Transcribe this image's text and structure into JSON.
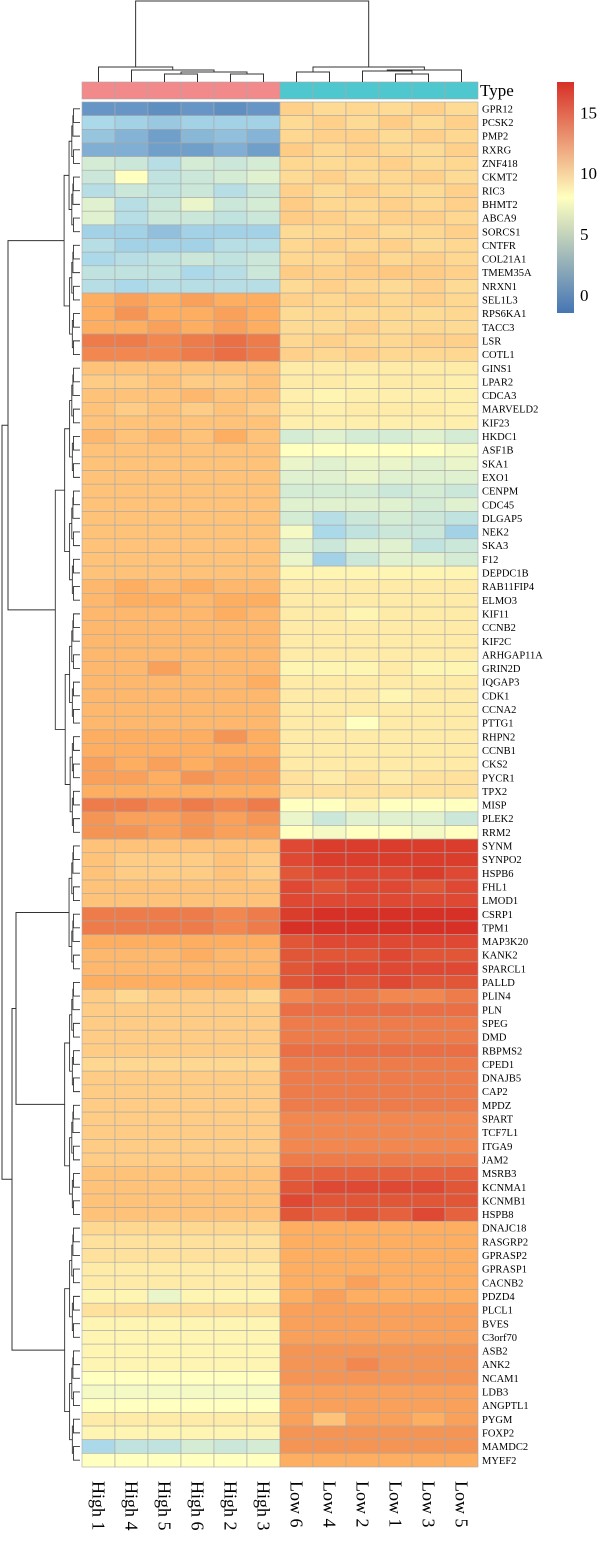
{
  "chart_data": {
    "type": "heatmap",
    "title": "",
    "annotation": {
      "label": "Type",
      "groups": [
        {
          "name": "High",
          "color": "#F28A8C"
        },
        {
          "name": "Low",
          "color": "#4EC8CE"
        }
      ]
    },
    "legend": {
      "ticks": [
        15,
        10,
        5,
        0
      ],
      "range": [
        -1.5,
        17.5
      ],
      "colors": [
        "#4575B4",
        "#FFFFBF",
        "#D73027"
      ],
      "placement": "top-right"
    },
    "columns": [
      "High 1",
      "High 4",
      "High 5",
      "High 6",
      "High 2",
      "High 3",
      "Low 6",
      "Low 4",
      "Low 2",
      "Low 1",
      "Low 3",
      "Low 5"
    ],
    "rows": [
      "GPR12",
      "PCSK2",
      "PMP2",
      "RXRG",
      "ZNF418",
      "CKMT2",
      "RIC3",
      "BHMT2",
      "ABCA9",
      "SORCS1",
      "CNTFR",
      "COL21A1",
      "TMEM35A",
      "NRXN1",
      "SEL1L3",
      "RPS6KA1",
      "TACC3",
      "LSR",
      "COTL1",
      "GINS1",
      "LPAR2",
      "CDCA3",
      "MARVELD2",
      "KIF23",
      "HKDC1",
      "ASF1B",
      "SKA1",
      "EXO1",
      "CENPM",
      "CDC45",
      "DLGAP5",
      "NEK2",
      "SKA3",
      "F12",
      "DEPDC1B",
      "RAB11FIP4",
      "ELMO3",
      "KIF11",
      "CCNB2",
      "KIF2C",
      "ARHGAP11A",
      "GRIN2D",
      "IQGAP3",
      "CDK1",
      "CCNA2",
      "PTTG1",
      "RHPN2",
      "CCNB1",
      "CKS2",
      "PYCR1",
      "TPX2",
      "MISP",
      "PLEK2",
      "RRM2",
      "SYNM",
      "SYNPO2",
      "HSPB6",
      "FHL1",
      "LMOD1",
      "CSRP1",
      "TPM1",
      "MAP3K20",
      "KANK2",
      "SPARCL1",
      "PALLD",
      "PLIN4",
      "PLN",
      "SPEG",
      "DMD",
      "RBPMS2",
      "CPED1",
      "DNAJB5",
      "CAP2",
      "MPDZ",
      "SPART",
      "TCF7L1",
      "ITGA9",
      "JAM2",
      "MSRB3",
      "KCNMA1",
      "KCNMB1",
      "HSPB8",
      "DNAJC18",
      "RASGRP2",
      "GPRASP2",
      "GPRASP1",
      "CACNB2",
      "PDZD4",
      "PLCL1",
      "BVES",
      "C3orf70",
      "ASB2",
      "ANK2",
      "NCAM1",
      "LDB3",
      "ANGPTL1",
      "PYGM",
      "FOXP2",
      "MAMDC2",
      "MYEF2"
    ],
    "values": [
      [
        0.5,
        0.5,
        0,
        0.5,
        0,
        0.5,
        10.8,
        10.3,
        10.5,
        10.3,
        10.8,
        10.3
      ],
      [
        4.5,
        4,
        3.5,
        4,
        4,
        4,
        10.3,
        10.8,
        10.3,
        11,
        10.3,
        10.8
      ],
      [
        3.3,
        2.2,
        1,
        2.5,
        3,
        2.3,
        10.5,
        10.8,
        10.8,
        10.3,
        10.8,
        10.5
      ],
      [
        2,
        2,
        1,
        1,
        2,
        1,
        11,
        10.5,
        10.8,
        10.5,
        10.3,
        10.8
      ],
      [
        6.5,
        6,
        5,
        6.5,
        6,
        6.5,
        10.5,
        10.3,
        10.5,
        10.8,
        10.3,
        10.5
      ],
      [
        6,
        8.5,
        5.5,
        6,
        6.5,
        7,
        10.3,
        10.8,
        10.3,
        10.5,
        10.8,
        10.3
      ],
      [
        5,
        6,
        5.5,
        6,
        5,
        6,
        10.8,
        10.3,
        10.8,
        10.5,
        10.3,
        10.8
      ],
      [
        7,
        5,
        6,
        7.5,
        6,
        6.5,
        11,
        10.5,
        10.5,
        10.8,
        10.5,
        10.8
      ],
      [
        7,
        5,
        6,
        6,
        5.5,
        6,
        11,
        10.8,
        10.5,
        10.8,
        10.8,
        10.5
      ],
      [
        4,
        4,
        3,
        4,
        4,
        4,
        10.3,
        10.5,
        10.8,
        10.3,
        10.5,
        10.8
      ],
      [
        5,
        4,
        4,
        4,
        5,
        5,
        10.5,
        10.8,
        10.5,
        10.8,
        10.3,
        10.5
      ],
      [
        4.5,
        5,
        5.5,
        6,
        5.5,
        6,
        10.5,
        10.5,
        11,
        10.5,
        10.8,
        10.5
      ],
      [
        5.5,
        5.5,
        5.5,
        4.5,
        5,
        6,
        11,
        10.8,
        11,
        11.2,
        11,
        10.8
      ],
      [
        5,
        4.5,
        5,
        5,
        5,
        5,
        10.3,
        10.8,
        10.5,
        10.3,
        10.8,
        10.3
      ],
      [
        12.5,
        13,
        12.5,
        13,
        12.5,
        12.5,
        10.8,
        10.5,
        10.8,
        10.5,
        10.8,
        10.5
      ],
      [
        12.5,
        13.5,
        12.5,
        12.5,
        13,
        12.5,
        10.3,
        10.5,
        10.3,
        10.5,
        10.3,
        10.5
      ],
      [
        12.5,
        12.5,
        13,
        12.5,
        13,
        12.5,
        10.3,
        10.3,
        10.8,
        10.3,
        10.5,
        10.3
      ],
      [
        14.5,
        14.5,
        14,
        14.5,
        15,
        14.5,
        10.5,
        10.8,
        10.5,
        10.5,
        10.8,
        10.8
      ],
      [
        14,
        14,
        14,
        14.5,
        15,
        14.5,
        10.8,
        10.5,
        10.8,
        10.5,
        10.5,
        10.5
      ],
      [
        11.5,
        11.5,
        11.5,
        11.5,
        11.5,
        11.5,
        9.5,
        9.5,
        9.5,
        9.5,
        9.5,
        9.5
      ],
      [
        11,
        11,
        11.5,
        11,
        11,
        11.5,
        9.5,
        9.5,
        9.3,
        9.5,
        9.5,
        9.3
      ],
      [
        11.5,
        11.5,
        11.5,
        12,
        11.5,
        11.5,
        9.3,
        9,
        9.3,
        9.3,
        9.3,
        9.3
      ],
      [
        11.5,
        11,
        11.5,
        11,
        11.5,
        11,
        9.5,
        9.3,
        9.5,
        9.5,
        9.5,
        9.3
      ],
      [
        11.5,
        11.5,
        11.5,
        11.5,
        11.5,
        11.5,
        9.3,
        9.3,
        9.3,
        9.3,
        9.3,
        9.3
      ],
      [
        12,
        11.5,
        12,
        11.5,
        12.5,
        11.5,
        6.5,
        7,
        6.5,
        6.5,
        7,
        6.5
      ],
      [
        11.5,
        11.5,
        11.5,
        11.5,
        11.5,
        11.5,
        8.5,
        8.5,
        8.5,
        8.5,
        8.5,
        8
      ],
      [
        11.5,
        11.5,
        11.5,
        11.5,
        11.5,
        11.5,
        7.5,
        7,
        7.5,
        7.5,
        7,
        7.5
      ],
      [
        11.5,
        11.5,
        11.5,
        11.5,
        11.5,
        11.5,
        7,
        7,
        7.5,
        7,
        7,
        7
      ],
      [
        11.5,
        11.5,
        11.5,
        11.5,
        11.5,
        11.5,
        6.5,
        6.5,
        6.5,
        6,
        6.5,
        6
      ],
      [
        11.5,
        11.5,
        11.5,
        11.5,
        11.5,
        11.5,
        7,
        7,
        7,
        7,
        6.5,
        7
      ],
      [
        11.5,
        11.5,
        11.5,
        11.5,
        11.5,
        11.5,
        6.5,
        5,
        6,
        6.5,
        6,
        5.5
      ],
      [
        11.5,
        11.5,
        11.5,
        11.5,
        11.5,
        11.5,
        8,
        4.5,
        5.5,
        6,
        6,
        4
      ],
      [
        11.5,
        11.5,
        11.5,
        11.5,
        11.5,
        11.5,
        7,
        6,
        7,
        7,
        5.5,
        6
      ],
      [
        11.5,
        11.5,
        11.5,
        11.5,
        11.5,
        11.5,
        7.5,
        4,
        6,
        7,
        7,
        6.5
      ],
      [
        11.5,
        11.5,
        11.5,
        11.5,
        11.5,
        11.5,
        9,
        9,
        9,
        9,
        9,
        9
      ],
      [
        12,
        12.5,
        12,
        12.5,
        12,
        12,
        9.5,
        9.5,
        9.5,
        9.5,
        9.5,
        9.5
      ],
      [
        12,
        12.5,
        12.5,
        12,
        12.5,
        12.5,
        9.5,
        9.5,
        9.5,
        9.5,
        9.5,
        9.5
      ],
      [
        12,
        12,
        12,
        12,
        12.5,
        12,
        9.5,
        9.5,
        9,
        9.5,
        9.5,
        9.5
      ],
      [
        12,
        12,
        12,
        12,
        12,
        12,
        9.5,
        9.5,
        9.5,
        9.5,
        9.5,
        9.5
      ],
      [
        12,
        12,
        12,
        12,
        12,
        12,
        9.5,
        9.5,
        9.5,
        9.5,
        9.5,
        9.5
      ],
      [
        12,
        12,
        12,
        12,
        12,
        12,
        9.5,
        9.5,
        9.5,
        9.5,
        9.5,
        9.5
      ],
      [
        12,
        12,
        13,
        12,
        12,
        12,
        9,
        9,
        9,
        9.5,
        9,
        9
      ],
      [
        12,
        12,
        12,
        12,
        12,
        12.5,
        9.5,
        9.5,
        9.5,
        9.5,
        9.5,
        9.5
      ],
      [
        12,
        12,
        12,
        12,
        12,
        12,
        9.5,
        9.5,
        9.5,
        9,
        9.5,
        9.5
      ],
      [
        12,
        12,
        12,
        12,
        12,
        12,
        9.5,
        9.5,
        9.5,
        9.5,
        9.5,
        9.5
      ],
      [
        12,
        12,
        12,
        12,
        12,
        12,
        9.5,
        9.5,
        8.5,
        9.5,
        9.5,
        9.5
      ],
      [
        12.5,
        12.5,
        12.5,
        12.5,
        13.5,
        12.5,
        9.5,
        9.5,
        9.5,
        9.5,
        9.5,
        9.5
      ],
      [
        12.5,
        12.5,
        12.5,
        12.5,
        12.5,
        12.5,
        9.5,
        9.5,
        9.5,
        9.5,
        9.5,
        9.5
      ],
      [
        13,
        12.5,
        13,
        12.5,
        13,
        13,
        9.5,
        9.5,
        9.5,
        9.5,
        9.5,
        9.5
      ],
      [
        13,
        13,
        12.5,
        13.5,
        13,
        13,
        10,
        9.5,
        10,
        9.5,
        10,
        10
      ],
      [
        12.5,
        12.5,
        12.5,
        12.5,
        12.5,
        12.5,
        10,
        10,
        10,
        10,
        10,
        10
      ],
      [
        14.5,
        14.5,
        14,
        14.5,
        14,
        14.5,
        8.5,
        8.5,
        9,
        8.5,
        8.5,
        8.5
      ],
      [
        13.5,
        13,
        13,
        13.5,
        13,
        13.5,
        7.5,
        6,
        7,
        7,
        7,
        6
      ],
      [
        13.5,
        13.5,
        13,
        13.5,
        13,
        13,
        8.5,
        8,
        8.5,
        8.5,
        8,
        8.5
      ],
      [
        11.5,
        11.5,
        11.5,
        11.5,
        11.5,
        11.5,
        16.5,
        17,
        17,
        17,
        17,
        17
      ],
      [
        11.5,
        11,
        11,
        11,
        11.5,
        11,
        16.5,
        17,
        17,
        17,
        17,
        17
      ],
      [
        11.5,
        11,
        11,
        11,
        11.5,
        11,
        16,
        16.5,
        16.5,
        16.5,
        17,
        16.5
      ],
      [
        11.5,
        11.5,
        11.5,
        11.5,
        11.5,
        11.5,
        16.5,
        16,
        16.5,
        16.5,
        16,
        16.5
      ],
      [
        11.5,
        11.5,
        11.5,
        11.5,
        11.5,
        11.5,
        16.5,
        16.5,
        16.5,
        16.5,
        16.5,
        16.5
      ],
      [
        14.5,
        14.5,
        14.5,
        14.5,
        14,
        14.5,
        17,
        17.5,
        17.5,
        17.5,
        17.5,
        17.5
      ],
      [
        14.5,
        14.5,
        14.5,
        14.5,
        14,
        14.5,
        17.5,
        17.5,
        17.5,
        17.5,
        17.5,
        17.5
      ],
      [
        12.5,
        12.5,
        12.5,
        12.5,
        12.5,
        12.5,
        16,
        16.5,
        16.5,
        16.5,
        16.5,
        16.5
      ],
      [
        12,
        12,
        12,
        12.5,
        12,
        12,
        16,
        16,
        16,
        16.5,
        16,
        16
      ],
      [
        12,
        12,
        12,
        12,
        12,
        12,
        16,
        16.5,
        16.5,
        16.5,
        16.5,
        16.5
      ],
      [
        12.5,
        12.5,
        12.5,
        12.5,
        12.5,
        12.5,
        16,
        16.5,
        16,
        16.5,
        16,
        16
      ],
      [
        11,
        10.5,
        11,
        11,
        11,
        10.5,
        14,
        14.5,
        14.5,
        14,
        14,
        14.5
      ],
      [
        11,
        11,
        11,
        11,
        11,
        11,
        15,
        15,
        15,
        15,
        15,
        15
      ],
      [
        11,
        11,
        11,
        11,
        11,
        11,
        14.5,
        14.5,
        14.5,
        14.5,
        14.5,
        14.5
      ],
      [
        11,
        11,
        11,
        11,
        11,
        11,
        14.5,
        14.5,
        14.5,
        14.5,
        14.5,
        14.5
      ],
      [
        11,
        11,
        11,
        11,
        11,
        11,
        15,
        15,
        15,
        15,
        15,
        15
      ],
      [
        10.5,
        10.5,
        10.5,
        10.5,
        10.5,
        10.5,
        14.5,
        14.5,
        14.5,
        14.5,
        14.5,
        14.5
      ],
      [
        11,
        11,
        11,
        11,
        11,
        11,
        14.5,
        14.5,
        14.5,
        14.5,
        14.5,
        14.5
      ],
      [
        11,
        11,
        11,
        11,
        11,
        11,
        14.5,
        14.5,
        14.5,
        14.5,
        14.5,
        14.5
      ],
      [
        11,
        11,
        11,
        11,
        11,
        11,
        14.5,
        14.5,
        14.5,
        14.5,
        14.5,
        14.5
      ],
      [
        11,
        11,
        11,
        11,
        11,
        11,
        14,
        14,
        14,
        14,
        14,
        14
      ],
      [
        11,
        11,
        11,
        11,
        11,
        11,
        14,
        14,
        14,
        14,
        14,
        14
      ],
      [
        11,
        11,
        11,
        11,
        11,
        11,
        14,
        14,
        14,
        14,
        14,
        14
      ],
      [
        11,
        11,
        11,
        11,
        11,
        11,
        14.5,
        14.5,
        14.5,
        14.5,
        14.5,
        14.5
      ],
      [
        11.5,
        11.5,
        11.5,
        11.5,
        11.5,
        11.5,
        15.5,
        15.5,
        15.5,
        15.5,
        15.5,
        15.5
      ],
      [
        11.5,
        11.5,
        11.5,
        11.5,
        11.5,
        11.5,
        16,
        16.5,
        16.5,
        16.5,
        16.5,
        16
      ],
      [
        11.5,
        11.5,
        11.5,
        11.5,
        11.5,
        11.5,
        16.5,
        16,
        16,
        16,
        16,
        16
      ],
      [
        11.5,
        11.5,
        11.5,
        11.5,
        11.5,
        11.5,
        16,
        15.5,
        16,
        15.5,
        16.5,
        15.5
      ],
      [
        10.5,
        10.5,
        10.5,
        10.5,
        10.5,
        10.5,
        12.5,
        12.5,
        12.5,
        12.5,
        12.5,
        12.5
      ],
      [
        10,
        10,
        10,
        10,
        10,
        10,
        12.5,
        12.5,
        12.5,
        12.5,
        12.5,
        12.5
      ],
      [
        10,
        10,
        10,
        10,
        10,
        10,
        12.5,
        12.5,
        12.5,
        12.5,
        12.5,
        12.5
      ],
      [
        9.5,
        9.5,
        9.5,
        9.5,
        9.5,
        9.5,
        12.5,
        12.5,
        12.5,
        12.5,
        12.5,
        12.5
      ],
      [
        9.5,
        9.5,
        9.5,
        9.5,
        9.5,
        9.5,
        12.5,
        12.5,
        13,
        12.5,
        12.5,
        12.5
      ],
      [
        9,
        9,
        7.5,
        9,
        9,
        9,
        12.5,
        13,
        12.5,
        12.5,
        12.5,
        12.5
      ],
      [
        10,
        10,
        10,
        10,
        10,
        10,
        13,
        13,
        13,
        13,
        13,
        13
      ],
      [
        9,
        9,
        9,
        9,
        9,
        9,
        13,
        13,
        13,
        13,
        13,
        13
      ],
      [
        9,
        9,
        9,
        9,
        9,
        9,
        13,
        13,
        13,
        13,
        13,
        13
      ],
      [
        9,
        9,
        9,
        9,
        9,
        9,
        13.5,
        13.5,
        13.5,
        13.5,
        13.5,
        13.5
      ],
      [
        9,
        9,
        9,
        9,
        9,
        9,
        13.5,
        13.5,
        14,
        13.5,
        13.5,
        13.5
      ],
      [
        8.5,
        8.5,
        8.5,
        8.5,
        8.5,
        8.5,
        13.5,
        13.5,
        13.5,
        13.5,
        13.5,
        13.5
      ],
      [
        8,
        8,
        8,
        8,
        8,
        8,
        13,
        13,
        13,
        13,
        13,
        13
      ],
      [
        8.5,
        8.5,
        8.5,
        8.5,
        8.5,
        8.5,
        13,
        13,
        13,
        13,
        13,
        13
      ],
      [
        9.5,
        9.5,
        9.5,
        9.5,
        9.5,
        9.5,
        13,
        11.5,
        13,
        13,
        12.5,
        13
      ],
      [
        9,
        9,
        9,
        9,
        9,
        9,
        13.5,
        13.5,
        13.5,
        13.5,
        13.5,
        13.5
      ],
      [
        4.5,
        5.5,
        5.5,
        6.5,
        6,
        6.5,
        13.5,
        13.5,
        13.5,
        13.5,
        13.5,
        13.5
      ],
      [
        8.5,
        8.5,
        8.5,
        8.5,
        8.5,
        8.5,
        12.5,
        12.5,
        12.5,
        12.5,
        12.5,
        12.5
      ]
    ]
  }
}
